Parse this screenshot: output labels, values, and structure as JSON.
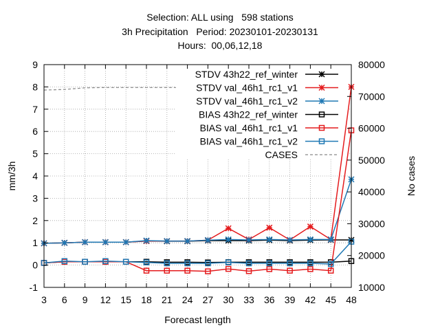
{
  "title": {
    "line1": "Selection: ALL using   598 stations",
    "line2": "3h Precipitation   Period: 20230101-20230131",
    "line3": "Hours:  00,06,12,18"
  },
  "chart_data": {
    "type": "line",
    "xlabel": "Forecast length",
    "ylabel": "mm/3h",
    "y2label": "No cases",
    "x": [
      3,
      6,
      9,
      12,
      15,
      18,
      21,
      24,
      27,
      30,
      33,
      36,
      39,
      42,
      45,
      48
    ],
    "ylim": [
      -1,
      9
    ],
    "y2lim": [
      10000,
      80000
    ],
    "yticks": [
      "-1",
      "0",
      "1",
      "2",
      "3",
      "4",
      "5",
      "6",
      "7",
      "8",
      "9"
    ],
    "y2ticks": [
      "10000",
      "20000",
      "30000",
      "40000",
      "50000",
      "60000",
      "70000",
      "80000"
    ],
    "xticks": [
      "3",
      "6",
      "9",
      "12",
      "15",
      "18",
      "21",
      "24",
      "27",
      "30",
      "33",
      "36",
      "39",
      "42",
      "45",
      "48"
    ],
    "grid": true,
    "legend_position": "top-right",
    "series": [
      {
        "name": "STDV 43h22_ref_winter",
        "color": "#000000",
        "marker": "star",
        "axis": "y",
        "values": [
          0.98,
          1.0,
          1.03,
          1.03,
          1.03,
          1.08,
          1.07,
          1.07,
          1.1,
          1.1,
          1.1,
          1.12,
          1.1,
          1.12,
          1.13,
          1.13
        ]
      },
      {
        "name": "STDV val_46h1_rc1_v1",
        "color": "#e41a1c",
        "marker": "star",
        "axis": "y",
        "values": [
          0.98,
          1.0,
          1.03,
          1.03,
          1.03,
          1.08,
          1.08,
          1.08,
          1.12,
          1.65,
          1.15,
          1.68,
          1.13,
          1.73,
          1.15,
          8.0
        ]
      },
      {
        "name": "STDV val_46h1_rc1_v2",
        "color": "#1f78b4",
        "marker": "star",
        "axis": "y",
        "values": [
          0.98,
          1.0,
          1.03,
          1.03,
          1.03,
          1.1,
          1.08,
          1.08,
          1.12,
          1.15,
          1.13,
          1.15,
          1.13,
          1.15,
          1.15,
          3.85
        ]
      },
      {
        "name": "BIAS 43h22_ref_winter",
        "color": "#000000",
        "marker": "square",
        "axis": "y",
        "values": [
          0.1,
          0.15,
          0.15,
          0.15,
          0.15,
          0.15,
          0.13,
          0.13,
          0.12,
          0.13,
          0.13,
          0.13,
          0.13,
          0.13,
          0.13,
          0.18
        ]
      },
      {
        "name": "BIAS val_46h1_rc1_v1",
        "color": "#e41a1c",
        "marker": "square",
        "axis": "y",
        "values": [
          0.1,
          0.15,
          0.15,
          0.15,
          0.15,
          -0.25,
          -0.25,
          -0.25,
          -0.28,
          -0.17,
          -0.27,
          -0.18,
          -0.25,
          -0.18,
          -0.25,
          6.05
        ]
      },
      {
        "name": "BIAS val_46h1_rc1_v2",
        "color": "#1f78b4",
        "marker": "square",
        "axis": "y",
        "values": [
          0.1,
          0.18,
          0.15,
          0.18,
          0.15,
          0.12,
          0.08,
          0.08,
          0.08,
          0.12,
          0.08,
          0.08,
          0.08,
          0.08,
          0.05,
          1.05
        ]
      },
      {
        "name": "CASES",
        "color": "#888888",
        "marker": "none",
        "dash": true,
        "axis": "y2",
        "values": [
          72000,
          72200,
          72700,
          72800,
          72800,
          72800,
          72800,
          72800,
          72800,
          72800,
          72800,
          72800,
          72800,
          72800,
          72800,
          72800
        ]
      }
    ]
  }
}
